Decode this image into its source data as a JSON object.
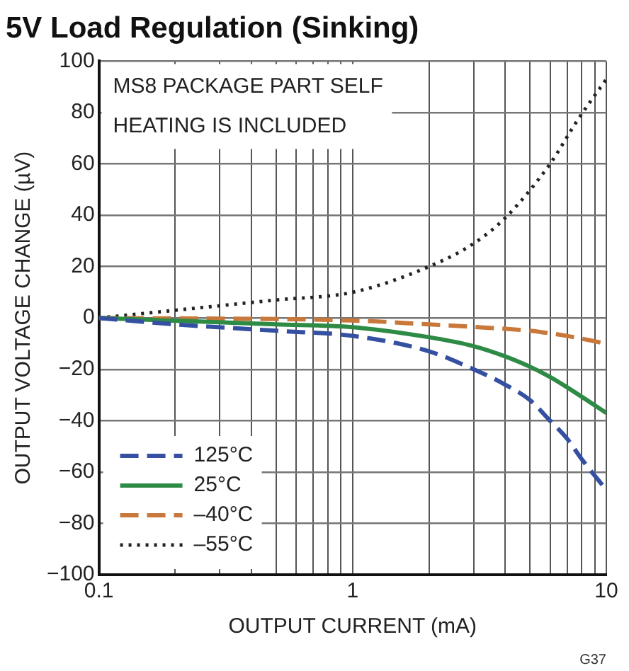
{
  "chart_data": {
    "type": "line",
    "title": "5V Load Regulation (Sinking)",
    "xlabel": "OUTPUT CURRENT (mA)",
    "ylabel": "OUTPUT VOLTAGE CHANGE (µV)",
    "annotations": [
      "MS8 PACKAGE PART SELF HEATING IS INCLUDED",
      "G37"
    ],
    "log": "x",
    "grid": true,
    "legend": "bottom left",
    "marker": "none",
    "xlim": [
      0.1,
      10
    ],
    "ylim": [
      -100,
      100
    ],
    "xticks": [
      0.1,
      {
        "value": 0.2,
        "label": null
      },
      {
        "value": 0.3,
        "label": null
      },
      {
        "value": 0.4,
        "label": null
      },
      {
        "value": 0.5,
        "label": null
      },
      {
        "value": 0.6,
        "label": null
      },
      {
        "value": 0.7,
        "label": null
      },
      {
        "value": 0.8,
        "label": null
      },
      {
        "value": 0.9,
        "label": null
      },
      1,
      {
        "value": 2,
        "label": null
      },
      {
        "value": 3,
        "label": null
      },
      {
        "value": 4,
        "label": null
      },
      {
        "value": 5,
        "label": null
      },
      {
        "value": 6,
        "label": null
      },
      {
        "value": 7,
        "label": null
      },
      {
        "value": 8,
        "label": null
      },
      {
        "value": 9,
        "label": null
      },
      10
    ],
    "yticks": [
      -100,
      -80,
      -60,
      -40,
      -20,
      0,
      20,
      40,
      60,
      80,
      100
    ],
    "series": [
      {
        "name": "125°C",
        "color": "#3550a0",
        "line_style": "dashed",
        "x": [
          0.1,
          0.2,
          0.5,
          1,
          2,
          3,
          4,
          5,
          6,
          7,
          8,
          10
        ],
        "values": [
          0,
          -2.5,
          -5,
          -7,
          -13,
          -20,
          -26,
          -32,
          -40,
          -47,
          -55,
          -67
        ]
      },
      {
        "name": "25°C",
        "color": "#2e8b45",
        "line_style": "solid",
        "x": [
          0.1,
          0.5,
          1,
          2,
          3,
          4,
          5,
          6,
          7,
          10
        ],
        "values": [
          0,
          -2.5,
          -3.6,
          -7.5,
          -11,
          -15,
          -19,
          -23,
          -27,
          -37
        ]
      },
      {
        "name": "–40°C",
        "color": "#c8783a",
        "line_style": "dashed",
        "x": [
          0.1,
          1,
          2,
          3,
          5,
          7,
          10
        ],
        "values": [
          0,
          -1,
          -2.5,
          -3.5,
          -5,
          -7,
          -10
        ]
      },
      {
        "name": "–55°C",
        "color": "#222222",
        "line_style": "dotted",
        "x": [
          0.1,
          0.2,
          0.5,
          1,
          2,
          3,
          4,
          6,
          7.7,
          10
        ],
        "values": [
          0,
          3,
          7,
          10,
          20,
          29,
          39,
          60,
          77,
          93
        ]
      }
    ]
  }
}
